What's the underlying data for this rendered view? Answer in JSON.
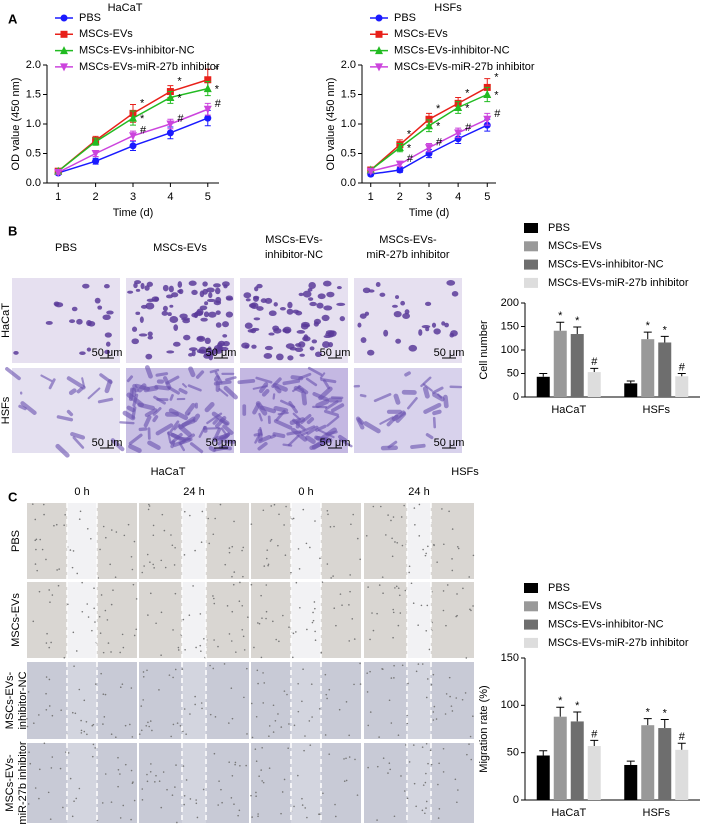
{
  "panel_labels": [
    "A",
    "B",
    "C"
  ],
  "chart_data": [
    {
      "type": "line",
      "title": "HaCaT",
      "x_label": "Time (d)",
      "y_label": "OD value (450 nm)",
      "x": [
        1,
        2,
        3,
        4,
        5
      ],
      "xlim": [
        0.7,
        5.3
      ],
      "xticks": [
        1,
        2,
        3,
        4,
        5
      ],
      "ylim": [
        0,
        2.0
      ],
      "yticks": [
        {
          "value": 0,
          "label": "0.0"
        },
        {
          "value": 0.5,
          "label": "0.5"
        },
        {
          "value": 1.0,
          "label": "1.0"
        },
        {
          "value": 1.5,
          "label": "1.5"
        },
        {
          "value": 2.0,
          "label": "2.0"
        }
      ],
      "legend": "top-left",
      "series": [
        {
          "name": "PBS",
          "color": "#1a1aff",
          "marker": "circle",
          "values": [
            0.17,
            0.37,
            0.63,
            0.85,
            1.1
          ],
          "errors": [
            0.03,
            0.05,
            0.08,
            0.1,
            0.13
          ],
          "annotations": [
            null,
            null,
            null,
            null,
            null
          ]
        },
        {
          "name": "MSCs-EVs",
          "color": "#e8201a",
          "marker": "square",
          "values": [
            0.2,
            0.72,
            1.18,
            1.55,
            1.75
          ],
          "errors": [
            0.03,
            0.07,
            0.15,
            0.1,
            0.18
          ],
          "annotations": [
            null,
            null,
            "*",
            "*",
            "*"
          ]
        },
        {
          "name": "MSCs-EVs-inhibitor-NC",
          "color": "#22bb22",
          "marker": "triangle",
          "values": [
            0.2,
            0.7,
            1.1,
            1.45,
            1.6
          ],
          "errors": [
            0.03,
            0.06,
            0.12,
            0.1,
            0.12
          ],
          "annotations": [
            null,
            null,
            "*",
            "*",
            "*"
          ]
        },
        {
          "name": "MSCs-EVs-miR-27b inhibitor",
          "color": "#cc44dd",
          "marker": "triangle-down",
          "values": [
            0.18,
            0.5,
            0.8,
            1.0,
            1.25
          ],
          "errors": [
            0.03,
            0.05,
            0.08,
            0.08,
            0.1
          ],
          "annotations": [
            null,
            null,
            "#",
            "#",
            "#"
          ]
        }
      ]
    },
    {
      "type": "line",
      "title": "HSFs",
      "x_label": "Time (d)",
      "y_label": "OD value (450 nm)",
      "x": [
        1,
        2,
        3,
        4,
        5
      ],
      "xlim": [
        0.7,
        5.3
      ],
      "xticks": [
        1,
        2,
        3,
        4,
        5
      ],
      "ylim": [
        0,
        2.0
      ],
      "yticks": [
        {
          "value": 0,
          "label": "0.0"
        },
        {
          "value": 0.5,
          "label": "0.5"
        },
        {
          "value": 1.0,
          "label": "1.0"
        },
        {
          "value": 1.5,
          "label": "1.5"
        },
        {
          "value": 2.0,
          "label": "2.0"
        }
      ],
      "legend": "top-left",
      "series": [
        {
          "name": "PBS",
          "color": "#1a1aff",
          "marker": "circle",
          "values": [
            0.15,
            0.22,
            0.5,
            0.75,
            0.98
          ],
          "errors": [
            0.03,
            0.04,
            0.07,
            0.08,
            0.1
          ],
          "annotations": [
            null,
            null,
            null,
            null,
            null
          ]
        },
        {
          "name": "MSCs-EVs",
          "color": "#e8201a",
          "marker": "square",
          "values": [
            0.22,
            0.65,
            1.08,
            1.35,
            1.62
          ],
          "errors": [
            0.03,
            0.08,
            0.1,
            0.1,
            0.15
          ],
          "annotations": [
            null,
            "*",
            "*",
            "*",
            "*"
          ]
        },
        {
          "name": "MSCs-EVs-inhibitor-NC",
          "color": "#22bb22",
          "marker": "triangle",
          "values": [
            0.22,
            0.6,
            0.97,
            1.28,
            1.5
          ],
          "errors": [
            0.03,
            0.07,
            0.1,
            0.1,
            0.12
          ],
          "annotations": [
            null,
            "*",
            "*",
            "*",
            "*"
          ]
        },
        {
          "name": "MSCs-EVs-miR-27b inhibitor",
          "color": "#cc44dd",
          "marker": "triangle-down",
          "values": [
            0.2,
            0.32,
            0.6,
            0.85,
            1.08
          ],
          "errors": [
            0.03,
            0.04,
            0.07,
            0.08,
            0.1
          ],
          "annotations": [
            null,
            "#",
            "#",
            "#",
            "#"
          ]
        }
      ]
    },
    {
      "type": "bar",
      "y_label": "Cell number",
      "categories": [
        "HaCaT",
        "HSFs"
      ],
      "ylim": [
        0,
        200
      ],
      "yticks": [
        0,
        50,
        100,
        150,
        200
      ],
      "legend": "top",
      "series": [
        {
          "name": "PBS",
          "color": "#000000",
          "values": [
            43,
            29
          ],
          "errors": [
            7,
            5
          ],
          "annotations": [
            null,
            null
          ]
        },
        {
          "name": "MSCs-EVs",
          "color": "#999999",
          "values": [
            141,
            123
          ],
          "errors": [
            18,
            15
          ],
          "annotations": [
            "*",
            "*"
          ]
        },
        {
          "name": "MSCs-EVs-inhibitor-NC",
          "color": "#6e6e6e",
          "values": [
            134,
            116
          ],
          "errors": [
            15,
            13
          ],
          "annotations": [
            "*",
            "*"
          ]
        },
        {
          "name": "MSCs-EVs-miR-27b inhibitor",
          "color": "#dddddd",
          "values": [
            53,
            44
          ],
          "errors": [
            8,
            6
          ],
          "annotations": [
            "#",
            "#"
          ]
        }
      ]
    },
    {
      "type": "bar",
      "y_label": "Migration rate (%)",
      "categories": [
        "HaCaT",
        "HSFs"
      ],
      "ylim": [
        0,
        150
      ],
      "yticks": [
        0,
        50,
        100,
        150
      ],
      "legend": "top",
      "series": [
        {
          "name": "PBS",
          "color": "#000000",
          "values": [
            47,
            37
          ],
          "errors": [
            5,
            4
          ],
          "annotations": [
            null,
            null
          ]
        },
        {
          "name": "MSCs-EVs",
          "color": "#999999",
          "values": [
            88,
            79
          ],
          "errors": [
            10,
            7
          ],
          "annotations": [
            "*",
            "*"
          ]
        },
        {
          "name": "MSCs-EVs-inhibitor-NC",
          "color": "#6e6e6e",
          "values": [
            83,
            76
          ],
          "errors": [
            10,
            9
          ],
          "annotations": [
            "*",
            "*"
          ]
        },
        {
          "name": "MSCs-EVs-miR-27b inhibitor",
          "color": "#dddddd",
          "values": [
            57,
            53
          ],
          "errors": [
            6,
            7
          ],
          "annotations": [
            "#",
            "#"
          ]
        }
      ]
    }
  ],
  "panel_b": {
    "columns": [
      [
        "PBS"
      ],
      [
        "MSCs-EVs"
      ],
      [
        "MSCs-EVs-",
        "inhibitor-NC"
      ],
      [
        "MSCs-EVs-",
        "miR-27b inhibitor"
      ]
    ],
    "rows": [
      "HaCaT",
      "HSFs"
    ],
    "scale_bar": "50 μm"
  },
  "panel_c": {
    "groups": [
      "HaCaT",
      "HSFs"
    ],
    "times": [
      "0 h",
      "24 h",
      "0 h",
      "24 h"
    ],
    "rows": [
      [
        "PBS"
      ],
      [
        "MSCs-EVs"
      ],
      [
        "MSCs-EVs-",
        "inhibitor-NC"
      ],
      [
        "MSCs-EVs-",
        "miR-27b inhibitor"
      ]
    ]
  }
}
